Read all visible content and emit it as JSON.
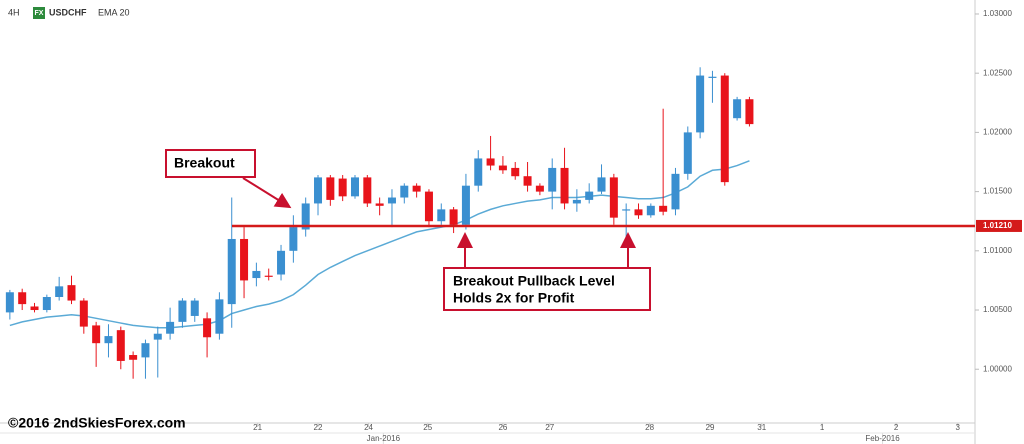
{
  "chart_data": {
    "type": "candlestick",
    "timeframe": "4H",
    "badge": "FX",
    "symbol": "USDCHF",
    "copyright": "©2016 2ndSkiesForex.com",
    "up_color": "#3a8fd0",
    "down_color": "#e8141b",
    "open": [
      1.0048,
      1.0065,
      1.0053,
      1.005,
      1.0061,
      1.0071,
      1.0058,
      1.0037,
      1.0022,
      1.0033,
      1.0012,
      1.001,
      1.0025,
      1.003,
      1.004,
      1.0045,
      1.0043,
      1.003,
      1.0055,
      1.011,
      1.0077,
      1.0079,
      1.008,
      1.01,
      1.0118,
      1.014,
      1.0162,
      1.0161,
      1.0146,
      1.0162,
      1.014,
      1.014,
      1.0145,
      1.0155,
      1.015,
      1.0125,
      1.0135,
      1.0122,
      1.0155,
      1.0178,
      1.0172,
      1.017,
      1.0163,
      1.0155,
      1.015,
      1.017,
      1.014,
      1.0143,
      1.015,
      1.0162,
      1.0134,
      1.0135,
      1.013,
      1.0138,
      1.0135,
      1.0165,
      1.02,
      1.0246,
      1.0248,
      1.0212,
      1.0228
    ],
    "high": [
      1.0067,
      1.0068,
      1.0056,
      1.0063,
      1.0078,
      1.0079,
      1.006,
      1.004,
      1.0038,
      1.0036,
      1.0015,
      1.0025,
      1.0036,
      1.0052,
      1.006,
      1.006,
      1.0048,
      1.0065,
      1.0145,
      1.012,
      1.009,
      1.0085,
      1.0105,
      1.013,
      1.0145,
      1.0164,
      1.0164,
      1.0164,
      1.0164,
      1.0164,
      1.0145,
      1.0152,
      1.0157,
      1.0157,
      1.0152,
      1.014,
      1.0137,
      1.0165,
      1.0185,
      1.0197,
      1.018,
      1.0175,
      1.0175,
      1.0157,
      1.0178,
      1.0187,
      1.0152,
      1.0157,
      1.0173,
      1.0165,
      1.014,
      1.014,
      1.014,
      1.022,
      1.017,
      1.0205,
      1.0255,
      1.0252,
      1.025,
      1.023,
      1.023
    ],
    "low": [
      1.0042,
      1.005,
      1.0048,
      1.0048,
      1.0058,
      1.0055,
      1.003,
      1.0002,
      1.001,
      1.0,
      0.9992,
      0.9992,
      0.9993,
      1.0025,
      1.0035,
      1.004,
      1.001,
      1.0025,
      1.0035,
      1.006,
      1.007,
      1.0075,
      1.0075,
      1.009,
      1.0112,
      1.013,
      1.0138,
      1.0142,
      1.0144,
      1.0137,
      1.013,
      1.012,
      1.014,
      1.0145,
      1.012,
      1.0122,
      1.0115,
      1.0118,
      1.015,
      1.0168,
      1.0165,
      1.016,
      1.015,
      1.0147,
      1.0135,
      1.0135,
      1.0133,
      1.014,
      1.0148,
      1.0122,
      1.011,
      1.0127,
      1.0128,
      1.013,
      1.013,
      1.016,
      1.0195,
      1.0225,
      1.0155,
      1.021,
      1.0205
    ],
    "close": [
      1.0065,
      1.0055,
      1.005,
      1.0061,
      1.007,
      1.0058,
      1.0036,
      1.0022,
      1.0028,
      1.0007,
      1.0008,
      1.0022,
      1.003,
      1.004,
      1.0058,
      1.0058,
      1.0027,
      1.0059,
      1.011,
      1.0075,
      1.0083,
      1.0078,
      1.01,
      1.012,
      1.014,
      1.0162,
      1.0143,
      1.0146,
      1.0162,
      1.014,
      1.0138,
      1.0145,
      1.0155,
      1.015,
      1.0125,
      1.0135,
      1.0122,
      1.0155,
      1.0178,
      1.0172,
      1.0168,
      1.0163,
      1.0155,
      1.015,
      1.017,
      1.014,
      1.0143,
      1.015,
      1.0162,
      1.0128,
      1.0135,
      1.013,
      1.0138,
      1.0133,
      1.0165,
      1.02,
      1.0248,
      1.0247,
      1.0158,
      1.0228,
      1.0207
    ],
    "series": [
      {
        "name": "EMA 20",
        "color": "#5aaad6",
        "values": [
          1.0037,
          1.004,
          1.0042,
          1.0044,
          1.0045,
          1.0046,
          1.0045,
          1.0043,
          1.0041,
          1.0039,
          1.0037,
          1.0036,
          1.0035,
          1.0035,
          1.0036,
          1.0037,
          1.0038,
          1.0041,
          1.0047,
          1.005,
          1.0053,
          1.0055,
          1.0058,
          1.0063,
          1.0071,
          1.008,
          1.0086,
          1.0091,
          1.0096,
          1.01,
          1.0104,
          1.0108,
          1.0112,
          1.0116,
          1.0118,
          1.012,
          1.0122,
          1.0126,
          1.0131,
          1.0135,
          1.0138,
          1.014,
          1.0142,
          1.0143,
          1.0145,
          1.0145,
          1.0145,
          1.0146,
          1.0147,
          1.0146,
          1.0145,
          1.0144,
          1.0144,
          1.0145,
          1.0149,
          1.0154,
          1.0163,
          1.0168,
          1.0169,
          1.0172,
          1.0176
        ]
      }
    ],
    "level": {
      "value": 1.0121,
      "label": "1.01210",
      "color": "#d41a1a"
    },
    "ylim": [
      0.99546,
      1.03118
    ],
    "yticks": [
      {
        "value": 1.0,
        "label": "1.00000"
      },
      {
        "value": 1.005,
        "label": "1.00500"
      },
      {
        "value": 1.01,
        "label": "1.01000"
      },
      {
        "value": 1.015,
        "label": "1.01500"
      },
      {
        "value": 1.02,
        "label": "1.02000"
      },
      {
        "value": 1.025,
        "label": "1.02500"
      },
      {
        "value": 1.03,
        "label": "1.03000"
      }
    ],
    "xlim": [
      -0.8,
      78.3
    ],
    "xticks": [
      {
        "value": 20.1,
        "label": "21"
      },
      {
        "value": 25,
        "label": "22"
      },
      {
        "value": 29.1,
        "label": "24"
      },
      {
        "value": 33.9,
        "label": "25"
      },
      {
        "value": 40,
        "label": "26"
      },
      {
        "value": 43.8,
        "label": "27"
      },
      {
        "value": 51.9,
        "label": "28"
      },
      {
        "value": 56.8,
        "label": "29"
      },
      {
        "value": 61,
        "label": "31"
      },
      {
        "value": 65.9,
        "label": "1"
      },
      {
        "value": 71.9,
        "label": "2"
      },
      {
        "value": 76.9,
        "label": "3"
      }
    ],
    "month_ticks": [
      {
        "value": 30.3,
        "label": "Jan-2016"
      },
      {
        "value": 70.8,
        "label": "Feb-2016"
      }
    ],
    "annotations": [
      {
        "text": "Breakout"
      },
      {
        "lines": [
          "Breakout Pullback Level",
          "Holds 2x for Profit"
        ]
      }
    ]
  }
}
